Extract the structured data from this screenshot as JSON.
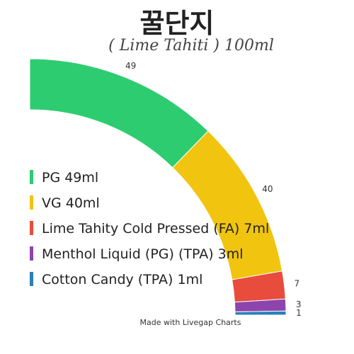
{
  "title": "꿀단지",
  "subtitle": "( Lime Tahiti ) 100ml",
  "footer": "Made with Livegap Charts",
  "chart_data": {
    "type": "pie",
    "variant": "quarter-doughnut",
    "series": [
      {
        "label": "PG 49ml",
        "value": 49,
        "color": "#2ecc71"
      },
      {
        "label": "VG 40ml",
        "value": 40,
        "color": "#f1c40f"
      },
      {
        "label": "Lime Tahity Cold Pressed (FA) 7ml",
        "value": 7,
        "color": "#e74c3c"
      },
      {
        "label": "Menthol Liquid (PG) (TPA) 3ml",
        "value": 3,
        "color": "#8e44ad"
      },
      {
        "label": "Cotton Candy (TPA)  1ml",
        "value": 1,
        "color": "#2980b9"
      }
    ],
    "legend_position": "left"
  }
}
